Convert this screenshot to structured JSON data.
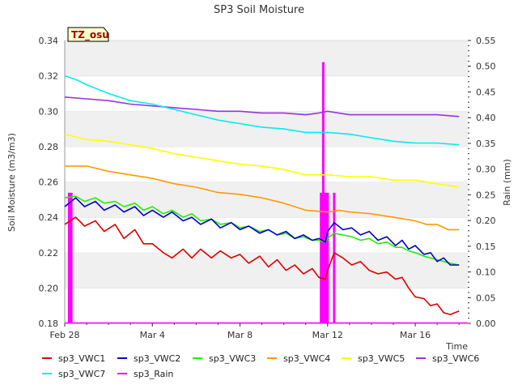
{
  "chart_data": {
    "type": "line",
    "title": "SP3 Soil Moisture",
    "ylabel": "Soil Moisture (m3/m3)",
    "y2label": "Rain (mm)",
    "xlabel": "Time",
    "badge": "TZ_osu",
    "ylim": [
      0.18,
      0.34
    ],
    "y2lim": [
      0.0,
      0.55
    ],
    "xlim": [
      0,
      18.4
    ],
    "x_tick_values": [
      0,
      4,
      8,
      12,
      16
    ],
    "x_tick_labels": [
      "Feb 28",
      "Mar 4",
      "Mar 8",
      "Mar 12",
      "Mar 16"
    ],
    "y_ticks": [
      0.18,
      0.2,
      0.22,
      0.24,
      0.26,
      0.28,
      0.3,
      0.32,
      0.34
    ],
    "y2_ticks": [
      0.0,
      0.05,
      0.1,
      0.15,
      0.2,
      0.25,
      0.3,
      0.35,
      0.4,
      0.45,
      0.5,
      0.55
    ],
    "grid": "horizontal bands",
    "legend_placement": "bottom",
    "series": [
      {
        "name": "sp3_VWC1",
        "color": "#dd0000",
        "axis": "left",
        "x": [
          0.0,
          0.5,
          0.9,
          1.4,
          1.8,
          2.3,
          2.7,
          3.2,
          3.6,
          4.0,
          4.5,
          4.9,
          5.4,
          5.8,
          6.2,
          6.7,
          7.1,
          7.6,
          8.0,
          8.4,
          8.9,
          9.3,
          9.7,
          10.1,
          10.5,
          10.9,
          11.3,
          11.6,
          11.9,
          12.0,
          12.3,
          12.7,
          13.1,
          13.5,
          13.9,
          14.3,
          14.7,
          15.1,
          15.4,
          15.7,
          16.0,
          16.4,
          16.7,
          17.0,
          17.3,
          17.6,
          18.0
        ],
        "values": [
          0.236,
          0.24,
          0.235,
          0.238,
          0.232,
          0.236,
          0.228,
          0.233,
          0.225,
          0.225,
          0.22,
          0.217,
          0.222,
          0.217,
          0.222,
          0.217,
          0.221,
          0.217,
          0.219,
          0.214,
          0.218,
          0.212,
          0.216,
          0.21,
          0.213,
          0.208,
          0.211,
          0.206,
          0.205,
          0.21,
          0.22,
          0.217,
          0.213,
          0.215,
          0.21,
          0.208,
          0.209,
          0.205,
          0.206,
          0.2,
          0.195,
          0.194,
          0.19,
          0.191,
          0.186,
          0.185,
          0.187
        ]
      },
      {
        "name": "sp3_VWC2",
        "color": "#0000cc",
        "axis": "left",
        "x": [
          0.0,
          0.5,
          0.9,
          1.4,
          1.8,
          2.3,
          2.7,
          3.2,
          3.6,
          4.0,
          4.5,
          4.9,
          5.4,
          5.8,
          6.2,
          6.7,
          7.1,
          7.6,
          8.0,
          8.4,
          8.9,
          9.3,
          9.7,
          10.1,
          10.5,
          10.9,
          11.3,
          11.6,
          11.9,
          12.0,
          12.3,
          12.7,
          13.1,
          13.5,
          13.9,
          14.3,
          14.7,
          15.1,
          15.4,
          15.7,
          16.0,
          16.4,
          16.7,
          17.0,
          17.3,
          17.6,
          18.0
        ],
        "values": [
          0.246,
          0.251,
          0.246,
          0.249,
          0.244,
          0.247,
          0.243,
          0.246,
          0.241,
          0.244,
          0.24,
          0.243,
          0.238,
          0.24,
          0.236,
          0.239,
          0.234,
          0.237,
          0.233,
          0.235,
          0.231,
          0.233,
          0.23,
          0.232,
          0.228,
          0.23,
          0.227,
          0.228,
          0.226,
          0.232,
          0.237,
          0.233,
          0.234,
          0.23,
          0.232,
          0.227,
          0.229,
          0.224,
          0.227,
          0.222,
          0.224,
          0.219,
          0.22,
          0.215,
          0.217,
          0.213,
          0.213
        ]
      },
      {
        "name": "sp3_VWC3",
        "color": "#22ee00",
        "axis": "left",
        "x": [
          0.0,
          0.5,
          0.9,
          1.4,
          1.8,
          2.3,
          2.7,
          3.2,
          3.6,
          4.0,
          4.5,
          4.9,
          5.4,
          5.8,
          6.2,
          6.7,
          7.1,
          7.6,
          8.0,
          8.4,
          8.9,
          9.3,
          9.7,
          10.1,
          10.5,
          10.9,
          11.3,
          11.6,
          11.9,
          12.0,
          12.3,
          12.7,
          13.1,
          13.5,
          13.9,
          14.3,
          14.7,
          15.1,
          15.4,
          15.7,
          16.0,
          16.4,
          16.7,
          17.0,
          17.3,
          17.6,
          18.0
        ],
        "values": [
          0.251,
          0.252,
          0.249,
          0.251,
          0.248,
          0.249,
          0.246,
          0.248,
          0.244,
          0.246,
          0.242,
          0.244,
          0.24,
          0.242,
          0.238,
          0.239,
          0.236,
          0.237,
          0.234,
          0.235,
          0.232,
          0.233,
          0.23,
          0.231,
          0.228,
          0.229,
          0.227,
          0.227,
          0.226,
          0.228,
          0.231,
          0.23,
          0.229,
          0.227,
          0.228,
          0.225,
          0.226,
          0.223,
          0.223,
          0.221,
          0.22,
          0.218,
          0.217,
          0.216,
          0.215,
          0.214,
          0.213
        ]
      },
      {
        "name": "sp3_VWC4",
        "color": "#ff9900",
        "axis": "left",
        "x": [
          0.0,
          1.0,
          2.0,
          3.0,
          4.0,
          5.0,
          6.0,
          7.0,
          8.0,
          9.0,
          10.0,
          11.0,
          12.0,
          12.5,
          13.0,
          14.0,
          15.0,
          16.0,
          16.5,
          17.0,
          17.5,
          18.0
        ],
        "values": [
          0.269,
          0.269,
          0.266,
          0.264,
          0.262,
          0.259,
          0.257,
          0.254,
          0.253,
          0.251,
          0.248,
          0.244,
          0.243,
          0.244,
          0.243,
          0.242,
          0.24,
          0.238,
          0.236,
          0.236,
          0.233,
          0.233
        ]
      },
      {
        "name": "sp3_VWC5",
        "color": "#ffff00",
        "axis": "left",
        "x": [
          0.0,
          1.0,
          2.0,
          3.0,
          4.0,
          5.0,
          6.0,
          7.0,
          8.0,
          9.0,
          10.0,
          11.0,
          12.0,
          13.0,
          14.0,
          15.0,
          16.0,
          17.0,
          18.0
        ],
        "values": [
          0.287,
          0.284,
          0.283,
          0.281,
          0.279,
          0.276,
          0.274,
          0.272,
          0.27,
          0.269,
          0.267,
          0.264,
          0.264,
          0.263,
          0.263,
          0.261,
          0.261,
          0.259,
          0.257
        ]
      },
      {
        "name": "sp3_VWC6",
        "color": "#9933dd",
        "axis": "left",
        "x": [
          0.0,
          1.0,
          2.0,
          3.0,
          4.0,
          5.0,
          6.0,
          7.0,
          8.0,
          9.0,
          10.0,
          11.0,
          11.6,
          12.0,
          12.5,
          13.0,
          14.0,
          15.0,
          16.0,
          17.0,
          18.0
        ],
        "values": [
          0.308,
          0.307,
          0.306,
          0.304,
          0.303,
          0.302,
          0.301,
          0.3,
          0.3,
          0.299,
          0.299,
          0.298,
          0.299,
          0.3,
          0.299,
          0.298,
          0.298,
          0.298,
          0.298,
          0.298,
          0.297
        ]
      },
      {
        "name": "sp3_VWC7",
        "color": "#00eeee",
        "axis": "left",
        "x": [
          0.0,
          0.5,
          1.0,
          2.0,
          3.0,
          4.0,
          5.0,
          6.0,
          7.0,
          8.0,
          9.0,
          10.0,
          11.0,
          12.0,
          13.0,
          14.0,
          15.0,
          16.0,
          17.0,
          18.0
        ],
        "values": [
          0.32,
          0.318,
          0.315,
          0.31,
          0.306,
          0.304,
          0.301,
          0.298,
          0.295,
          0.293,
          0.291,
          0.29,
          0.288,
          0.288,
          0.287,
          0.285,
          0.283,
          0.282,
          0.282,
          0.281
        ]
      },
      {
        "name": "sp3_Rain",
        "color": "#ff00ff",
        "axis": "right",
        "style": "bars",
        "x": [
          0.2,
          0.3,
          11.7,
          11.8,
          11.9,
          12.0,
          12.3
        ],
        "values": [
          0.254,
          0.254,
          0.254,
          0.508,
          0.254,
          0.254,
          0.254
        ]
      }
    ]
  }
}
